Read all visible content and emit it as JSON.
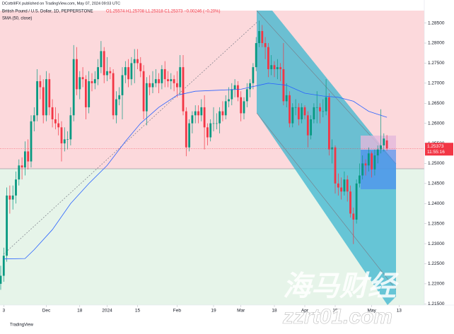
{
  "header": {
    "publisher": "DCottrillFX published on TradingView.com, May 07, 2024 09:03 UTC"
  },
  "chart_data": {
    "type": "candlestick",
    "title": "British Pound / U.S. Dollar, 1D, PEPPERSTONE",
    "ohlc_legend": "O1.25574 H1.25708 L1.25318 C1.25373 −0.00246 (−0.20%)",
    "up_color": "#089981",
    "down_color": "#f23645",
    "xlim": [
      -0.23,
      139.3
    ],
    "ylim": [
      1.2147,
      1.2881
    ],
    "yticks": [
      {
        "value": 1.285,
        "label": "1.28500"
      },
      {
        "value": 1.28,
        "label": "1.28000"
      },
      {
        "value": 1.275,
        "label": "1.27500"
      },
      {
        "value": 1.27,
        "label": "1.27000"
      },
      {
        "value": 1.265,
        "label": "1.26500"
      },
      {
        "value": 1.26,
        "label": "1.26000"
      },
      {
        "value": 1.255,
        "label": "1.25500"
      },
      {
        "value": 1.25,
        "label": "1.25000"
      },
      {
        "value": 1.245,
        "label": "1.24500"
      },
      {
        "value": 1.24,
        "label": "1.24000"
      },
      {
        "value": 1.235,
        "label": "1.23500"
      },
      {
        "value": 1.23,
        "label": "1.23000"
      },
      {
        "value": 1.225,
        "label": "1.22500"
      },
      {
        "value": 1.22,
        "label": "1.22000"
      },
      {
        "value": 1.215,
        "label": "1.21500"
      }
    ],
    "xticks": [
      {
        "value": 1,
        "label": "3"
      },
      {
        "value": 15,
        "label": "Dec"
      },
      {
        "value": 26,
        "label": "18"
      },
      {
        "value": 35,
        "label": "2024"
      },
      {
        "value": 45,
        "label": "15"
      },
      {
        "value": 58,
        "label": "Feb"
      },
      {
        "value": 70,
        "label": "19"
      },
      {
        "value": 79,
        "label": "Mar"
      },
      {
        "value": 90,
        "label": "18"
      },
      {
        "value": 100,
        "label": "Apr"
      },
      {
        "value": 110,
        "label": "15"
      },
      {
        "value": 122,
        "label": "May"
      },
      {
        "value": 131,
        "label": "13"
      }
    ],
    "candles": [
      [
        1.22,
        1.2245,
        1.2185,
        1.222
      ],
      [
        1.222,
        1.229,
        1.2205,
        1.227
      ],
      [
        1.227,
        1.244,
        1.2255,
        1.242
      ],
      [
        1.242,
        1.2445,
        1.2375,
        1.241
      ],
      [
        1.241,
        1.2445,
        1.2385,
        1.242
      ],
      [
        1.242,
        1.248,
        1.24,
        1.246
      ],
      [
        1.246,
        1.251,
        1.2445,
        1.2495
      ],
      [
        1.2495,
        1.2515,
        1.246,
        1.249
      ],
      [
        1.249,
        1.2555,
        1.247,
        1.253
      ],
      [
        1.253,
        1.256,
        1.2485,
        1.2505
      ],
      [
        1.2505,
        1.262,
        1.249,
        1.2605
      ],
      [
        1.2605,
        1.264,
        1.258,
        1.262
      ],
      [
        1.262,
        1.2735,
        1.2605,
        1.2705
      ],
      [
        1.2705,
        1.272,
        1.266,
        1.269
      ],
      [
        1.269,
        1.271,
        1.26,
        1.262
      ],
      [
        1.262,
        1.273,
        1.2605,
        1.271
      ],
      [
        1.271,
        1.2725,
        1.262,
        1.264
      ],
      [
        1.264,
        1.266,
        1.259,
        1.261
      ],
      [
        1.261,
        1.264,
        1.2585,
        1.26
      ],
      [
        1.26,
        1.2625,
        1.257,
        1.259
      ],
      [
        1.259,
        1.2605,
        1.2505,
        1.255
      ],
      [
        1.255,
        1.259,
        1.253,
        1.256
      ],
      [
        1.256,
        1.258,
        1.2535,
        1.256
      ],
      [
        1.256,
        1.264,
        1.2545,
        1.262
      ],
      [
        1.262,
        1.2795,
        1.2605,
        1.276
      ],
      [
        1.276,
        1.279,
        1.267,
        1.2685
      ],
      [
        1.2685,
        1.273,
        1.266,
        1.2715
      ],
      [
        1.2715,
        1.274,
        1.269,
        1.271
      ],
      [
        1.271,
        1.272,
        1.261,
        1.264
      ],
      [
        1.264,
        1.273,
        1.2625,
        1.2705
      ],
      [
        1.2705,
        1.2725,
        1.268,
        1.27
      ],
      [
        1.27,
        1.273,
        1.2685,
        1.271
      ],
      [
        1.271,
        1.276,
        1.2695,
        1.274
      ],
      [
        1.274,
        1.2805,
        1.2725,
        1.278
      ],
      [
        1.278,
        1.279,
        1.27,
        1.272
      ],
      [
        1.272,
        1.2765,
        1.2705,
        1.273
      ],
      [
        1.273,
        1.274,
        1.271,
        1.2725
      ],
      [
        1.2725,
        1.2735,
        1.261,
        1.262
      ],
      [
        1.262,
        1.268,
        1.26,
        1.266
      ],
      [
        1.266,
        1.269,
        1.2645,
        1.267
      ],
      [
        1.267,
        1.274,
        1.261,
        1.272
      ],
      [
        1.272,
        1.2755,
        1.27,
        1.274
      ],
      [
        1.274,
        1.276,
        1.269,
        1.271
      ],
      [
        1.271,
        1.2765,
        1.2695,
        1.275
      ],
      [
        1.275,
        1.2785,
        1.27,
        1.276
      ],
      [
        1.276,
        1.2785,
        1.2735,
        1.275
      ],
      [
        1.275,
        1.2765,
        1.2715,
        1.273
      ],
      [
        1.273,
        1.2745,
        1.261,
        1.263
      ],
      [
        1.263,
        1.2715,
        1.2595,
        1.27
      ],
      [
        1.27,
        1.272,
        1.267,
        1.269
      ],
      [
        1.269,
        1.273,
        1.2675,
        1.27
      ],
      [
        1.27,
        1.2735,
        1.269,
        1.271
      ],
      [
        1.271,
        1.2725,
        1.2675,
        1.27
      ],
      [
        1.27,
        1.2745,
        1.2685,
        1.2735
      ],
      [
        1.2735,
        1.2755,
        1.269,
        1.271
      ],
      [
        1.271,
        1.273,
        1.269,
        1.2705
      ],
      [
        1.2705,
        1.2725,
        1.2685,
        1.271
      ],
      [
        1.271,
        1.272,
        1.268,
        1.27
      ],
      [
        1.27,
        1.273,
        1.2665,
        1.269
      ],
      [
        1.269,
        1.277,
        1.267,
        1.274
      ],
      [
        1.274,
        1.277,
        1.262,
        1.263
      ],
      [
        1.263,
        1.264,
        1.2518,
        1.254
      ],
      [
        1.254,
        1.261,
        1.253,
        1.26
      ],
      [
        1.26,
        1.263,
        1.2575,
        1.262
      ],
      [
        1.262,
        1.2645,
        1.26,
        1.263
      ],
      [
        1.263,
        1.2645,
        1.26,
        1.262
      ],
      [
        1.262,
        1.266,
        1.2605,
        1.264
      ],
      [
        1.264,
        1.267,
        1.2535,
        1.259
      ],
      [
        1.259,
        1.26,
        1.2545,
        1.2565
      ],
      [
        1.2565,
        1.261,
        1.2555,
        1.26
      ],
      [
        1.26,
        1.264,
        1.258,
        1.26
      ],
      [
        1.26,
        1.2625,
        1.2585,
        1.26
      ],
      [
        1.26,
        1.264,
        1.2575,
        1.263
      ],
      [
        1.263,
        1.2655,
        1.2605,
        1.262
      ],
      [
        1.262,
        1.267,
        1.261,
        1.2655
      ],
      [
        1.2655,
        1.269,
        1.264,
        1.266
      ],
      [
        1.266,
        1.27,
        1.2645,
        1.2685
      ],
      [
        1.2685,
        1.271,
        1.2665,
        1.2695
      ],
      [
        1.2695,
        1.2705,
        1.2655,
        1.2665
      ],
      [
        1.2665,
        1.268,
        1.2605,
        1.2625
      ],
      [
        1.2625,
        1.2665,
        1.261,
        1.2655
      ],
      [
        1.2655,
        1.27,
        1.264,
        1.2685
      ],
      [
        1.2685,
        1.271,
        1.2665,
        1.27
      ],
      [
        1.27,
        1.275,
        1.2685,
        1.274
      ],
      [
        1.274,
        1.2815,
        1.273,
        1.28
      ],
      [
        1.28,
        1.2856,
        1.279,
        1.283
      ],
      [
        1.283,
        1.2845,
        1.279,
        1.28
      ],
      [
        1.28,
        1.2815,
        1.276,
        1.279
      ],
      [
        1.279,
        1.28,
        1.2715,
        1.2735
      ],
      [
        1.2735,
        1.277,
        1.272,
        1.2745
      ],
      [
        1.2745,
        1.2755,
        1.2715,
        1.2735
      ],
      [
        1.2735,
        1.276,
        1.271,
        1.274
      ],
      [
        1.274,
        1.275,
        1.2705,
        1.2735
      ],
      [
        1.2735,
        1.28,
        1.2645,
        1.2655
      ],
      [
        1.2655,
        1.27,
        1.264,
        1.267
      ],
      [
        1.267,
        1.268,
        1.259,
        1.26
      ],
      [
        1.26,
        1.265,
        1.259,
        1.264
      ],
      [
        1.264,
        1.266,
        1.262,
        1.264
      ],
      [
        1.264,
        1.265,
        1.2595,
        1.261
      ],
      [
        1.261,
        1.265,
        1.26,
        1.264
      ],
      [
        1.264,
        1.2645,
        1.261,
        1.262
      ],
      [
        1.262,
        1.263,
        1.254,
        1.257
      ],
      [
        1.257,
        1.262,
        1.256,
        1.261
      ],
      [
        1.261,
        1.265,
        1.26,
        1.264
      ],
      [
        1.264,
        1.268,
        1.26,
        1.264
      ],
      [
        1.264,
        1.265,
        1.26,
        1.263
      ],
      [
        1.263,
        1.266,
        1.2615,
        1.263
      ],
      [
        1.263,
        1.271,
        1.262,
        1.2665
      ],
      [
        1.2665,
        1.2675,
        1.252,
        1.2535
      ],
      [
        1.2535,
        1.256,
        1.25,
        1.254
      ],
      [
        1.254,
        1.2545,
        1.2425,
        1.245
      ],
      [
        1.245,
        1.2475,
        1.242,
        1.244
      ],
      [
        1.244,
        1.2465,
        1.241,
        1.243
      ],
      [
        1.243,
        1.248,
        1.242,
        1.246
      ],
      [
        1.246,
        1.247,
        1.2405,
        1.243
      ],
      [
        1.243,
        1.2445,
        1.2365,
        1.2375
      ],
      [
        1.2375,
        1.239,
        1.2299,
        1.236
      ],
      [
        1.236,
        1.246,
        1.235,
        1.245
      ],
      [
        1.245,
        1.25,
        1.244,
        1.247
      ],
      [
        1.247,
        1.252,
        1.246,
        1.25
      ],
      [
        1.25,
        1.251,
        1.247,
        1.2495
      ],
      [
        1.2495,
        1.254,
        1.248,
        1.2525
      ],
      [
        1.2525,
        1.253,
        1.2465,
        1.2485
      ],
      [
        1.2485,
        1.2535,
        1.247,
        1.252
      ],
      [
        1.252,
        1.2545,
        1.25,
        1.2535
      ],
      [
        1.2535,
        1.2635,
        1.2525,
        1.2545
      ],
      [
        1.2545,
        1.2575,
        1.253,
        1.2562
      ],
      [
        1.25574,
        1.25708,
        1.25318,
        1.25373
      ]
    ],
    "indicator": {
      "name": "SMA (50, close)",
      "color": "#2962ff",
      "x": [
        1,
        8,
        11,
        17,
        23,
        29,
        35,
        41,
        46,
        52,
        58,
        64,
        70,
        79,
        88,
        94,
        100,
        106,
        111,
        116,
        121,
        127
      ],
      "values": [
        1.2262,
        1.2263,
        1.2285,
        1.2335,
        1.24,
        1.245,
        1.2495,
        1.2555,
        1.26,
        1.264,
        1.267,
        1.268,
        1.2682,
        1.2685,
        1.27,
        1.2695,
        1.2675,
        1.2668,
        1.2665,
        1.2655,
        1.263,
        1.2615
      ]
    },
    "last_price": {
      "value": 1.25373,
      "countdown": "11:55:16"
    }
  },
  "footer": "TradingView",
  "watermark": [
    "海马财经",
    "zzrt01.com"
  ]
}
